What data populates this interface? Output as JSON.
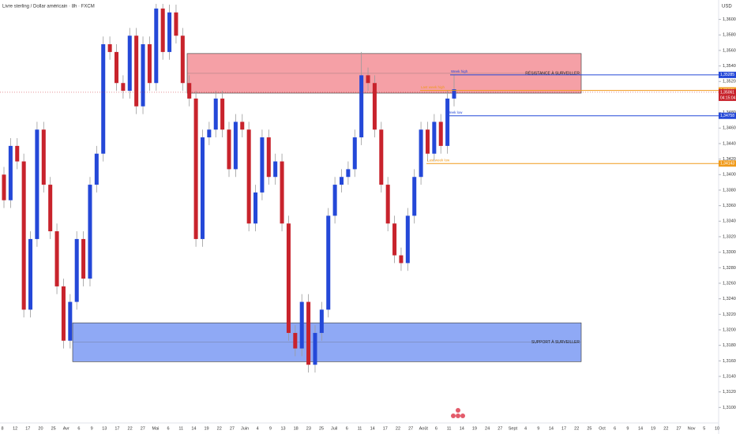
{
  "chart_data": {
    "type": "candlestick",
    "title": "Livre sterling / Dollar américain · 8h · FXCM",
    "currency": "USD",
    "up_color": "#2448d8",
    "down_color": "#c8232c",
    "ylim": [
      1.308,
      1.3625
    ],
    "yticks": [
      {
        "value": 1.31,
        "label": "1,31000"
      },
      {
        "value": 1.312,
        "label": "1,31200"
      },
      {
        "value": 1.314,
        "label": "1,31400"
      },
      {
        "value": 1.316,
        "label": "1,31600"
      },
      {
        "value": 1.318,
        "label": "1,31800"
      },
      {
        "value": 1.32,
        "label": "1,32000"
      },
      {
        "value": 1.322,
        "label": "1,32200"
      },
      {
        "value": 1.324,
        "label": "1,32400"
      },
      {
        "value": 1.326,
        "label": "1,32600"
      },
      {
        "value": 1.328,
        "label": "1,32800"
      },
      {
        "value": 1.33,
        "label": "1,33000"
      },
      {
        "value": 1.332,
        "label": "1,33200"
      },
      {
        "value": 1.334,
        "label": "1,33400"
      },
      {
        "value": 1.336,
        "label": "1,33600"
      },
      {
        "value": 1.338,
        "label": "1,33800"
      },
      {
        "value": 1.34,
        "label": "1,34000"
      },
      {
        "value": 1.342,
        "label": "1,34200"
      },
      {
        "value": 1.344,
        "label": "1,34400"
      },
      {
        "value": 1.346,
        "label": "1,34600"
      },
      {
        "value": 1.348,
        "label": "1,34800"
      },
      {
        "value": 1.35,
        "label": "1,35000"
      },
      {
        "value": 1.352,
        "label": "1,35200"
      },
      {
        "value": 1.354,
        "label": "1,35400"
      },
      {
        "value": 1.356,
        "label": "1,35600"
      },
      {
        "value": 1.358,
        "label": "1,35800"
      },
      {
        "value": 1.36,
        "label": "1,36000"
      }
    ],
    "x_labels": [
      "8",
      "12",
      "17",
      "20",
      "25",
      "Avr",
      "6",
      "9",
      "13",
      "17",
      "22",
      "27",
      "Mai",
      "6",
      "11",
      "14",
      "19",
      "22",
      "27",
      "Juin",
      "4",
      "9",
      "13",
      "18",
      "23",
      "25",
      "Juil",
      "6",
      "11",
      "14",
      "17",
      "22",
      "27",
      "Août",
      "6",
      "11",
      "14",
      "19",
      "24",
      "27",
      "Sept",
      "4",
      "9",
      "14",
      "17",
      "22",
      "25",
      "Oct",
      "6",
      "9",
      "14",
      "19",
      "22",
      "27",
      "Nov",
      "5",
      "10"
    ],
    "open": [
      1.34,
      1.3367,
      1.3437,
      1.3417,
      1.3226,
      1.3317,
      1.3458,
      1.3387,
      1.3327,
      1.3256,
      1.3186,
      1.3236,
      1.3317,
      1.3266,
      1.3387,
      1.3427,
      1.3568,
      1.3558,
      1.3518,
      1.3508,
      1.3579,
      1.3488,
      1.3568,
      1.3518,
      1.3614,
      1.3558,
      1.3609,
      1.3579,
      1.3518,
      1.3498,
      1.3317,
      1.3448,
      1.3458,
      1.3498,
      1.3458,
      1.3407,
      1.3468,
      1.3458,
      1.3337,
      1.3377,
      1.3448,
      1.3397,
      1.3417,
      1.3337,
      1.3196,
      1.3176,
      1.3236,
      1.3155,
      1.3196,
      1.3226,
      1.3347,
      1.3387,
      1.3397,
      1.3407,
      1.3448,
      1.3528,
      1.3518,
      1.3458,
      1.3387,
      1.3337,
      1.3296,
      1.3286,
      1.3347,
      1.3397,
      1.3458,
      1.3427,
      1.3468,
      1.3437,
      1.3498
    ],
    "high": [
      1.341,
      1.3447,
      1.3447,
      1.3427,
      1.3327,
      1.3468,
      1.3468,
      1.3397,
      1.3337,
      1.3266,
      1.3246,
      1.3327,
      1.3327,
      1.3397,
      1.3437,
      1.3578,
      1.3578,
      1.3568,
      1.3528,
      1.3589,
      1.3589,
      1.3578,
      1.3578,
      1.362,
      1.362,
      1.3619,
      1.3619,
      1.3589,
      1.3528,
      1.3508,
      1.3458,
      1.3468,
      1.3508,
      1.3508,
      1.3468,
      1.3478,
      1.3478,
      1.3468,
      1.3387,
      1.3458,
      1.3458,
      1.3427,
      1.3427,
      1.3347,
      1.3206,
      1.3246,
      1.3246,
      1.3206,
      1.3236,
      1.3357,
      1.3397,
      1.3407,
      1.3417,
      1.3458,
      1.3558,
      1.3538,
      1.3528,
      1.3468,
      1.3397,
      1.3347,
      1.3306,
      1.3357,
      1.3407,
      1.3468,
      1.3468,
      1.3478,
      1.3478,
      1.3508,
      1.3528
    ],
    "low": [
      1.3357,
      1.3357,
      1.3407,
      1.3216,
      1.3216,
      1.3307,
      1.3377,
      1.3317,
      1.3246,
      1.3176,
      1.3176,
      1.3226,
      1.3256,
      1.3256,
      1.3377,
      1.3417,
      1.3548,
      1.3508,
      1.3498,
      1.3498,
      1.3478,
      1.3478,
      1.3508,
      1.3508,
      1.3548,
      1.3548,
      1.3569,
      1.3508,
      1.3488,
      1.3307,
      1.3307,
      1.3438,
      1.3448,
      1.3448,
      1.3397,
      1.3397,
      1.3448,
      1.3327,
      1.3327,
      1.3367,
      1.3387,
      1.3387,
      1.3327,
      1.3186,
      1.3166,
      1.3166,
      1.3145,
      1.3145,
      1.3186,
      1.3216,
      1.3337,
      1.3377,
      1.3387,
      1.3397,
      1.3438,
      1.3508,
      1.3448,
      1.3377,
      1.3327,
      1.3286,
      1.3276,
      1.3276,
      1.3337,
      1.3387,
      1.3417,
      1.3417,
      1.3427,
      1.3427,
      1.3488
    ],
    "close": [
      1.3367,
      1.3437,
      1.3417,
      1.3226,
      1.3317,
      1.3458,
      1.3387,
      1.3327,
      1.3256,
      1.3186,
      1.3236,
      1.3317,
      1.3266,
      1.3387,
      1.3427,
      1.3568,
      1.3558,
      1.3518,
      1.3508,
      1.3579,
      1.3488,
      1.3568,
      1.3518,
      1.3614,
      1.3558,
      1.3609,
      1.3579,
      1.3518,
      1.3498,
      1.3317,
      1.3448,
      1.3458,
      1.3498,
      1.3458,
      1.3407,
      1.3468,
      1.3458,
      1.3337,
      1.3377,
      1.3448,
      1.3397,
      1.3417,
      1.3337,
      1.3196,
      1.3176,
      1.3236,
      1.3155,
      1.3196,
      1.3226,
      1.3347,
      1.3387,
      1.3397,
      1.3407,
      1.3448,
      1.3528,
      1.3518,
      1.3458,
      1.3387,
      1.3337,
      1.3296,
      1.3286,
      1.3347,
      1.3397,
      1.3458,
      1.3427,
      1.3468,
      1.3437,
      1.3498,
      1.351
    ],
    "zones": [
      {
        "label": "RÉSISTANCE À SURVEILLER",
        "top": 1.3556,
        "bottom": 1.3505,
        "color": "#f5a0a6"
      },
      {
        "label": "SUPPORT À SURVEILLER",
        "top": 1.3209,
        "bottom": 1.3159,
        "color": "#8fa9f5"
      }
    ],
    "levels": [
      {
        "name": "Week high",
        "price": 1.35285,
        "price_label": "1,35285",
        "color": "#2448d8"
      },
      {
        "name": "Last week high",
        "price": 1.35085,
        "price_label": "1,35085",
        "color": "#f09a1a"
      },
      {
        "name": "Week low",
        "price": 1.34758,
        "price_label": "1,34758",
        "color": "#2448d8"
      },
      {
        "name": "Last week low",
        "price": 1.34143,
        "price_label": "1,34143",
        "color": "#f09a1a"
      }
    ],
    "last_price": 1.35061,
    "last_price_label": "1,35061",
    "countdown": "04:15:04"
  }
}
